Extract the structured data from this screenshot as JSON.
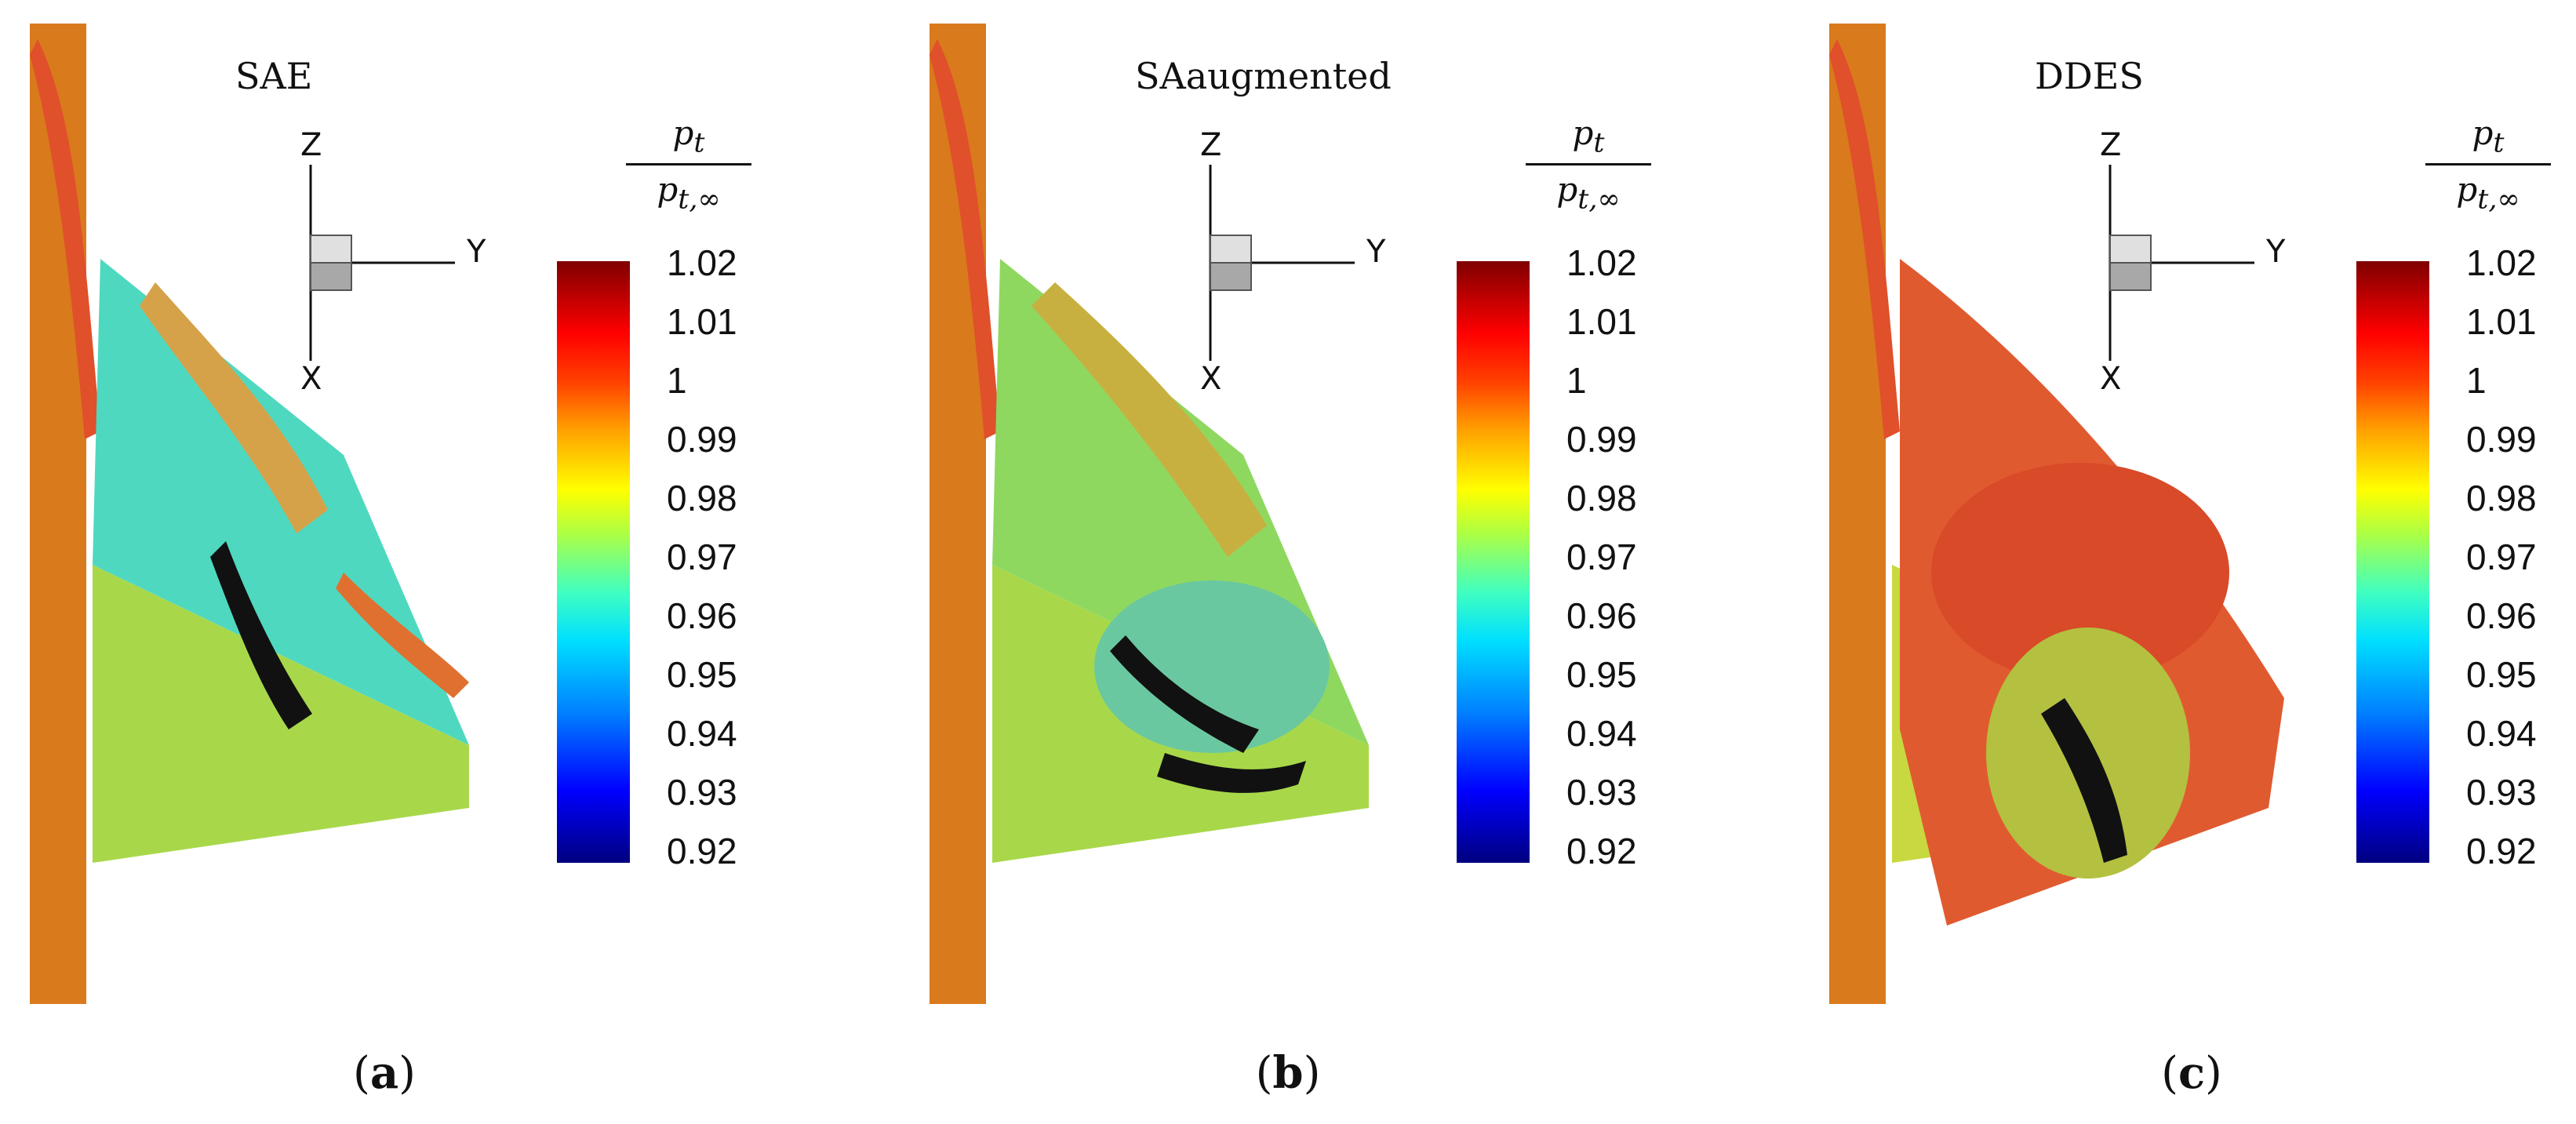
{
  "colormap": {
    "variable_numerator": "p",
    "variable_numerator_sub": "t",
    "variable_denominator": "p",
    "variable_denominator_sub": "t,∞",
    "ticks": [
      "1.02",
      "1.01",
      "1",
      "0.99",
      "0.98",
      "0.97",
      "0.96",
      "0.95",
      "0.94",
      "0.93",
      "0.92"
    ],
    "range": [
      0.92,
      1.02
    ],
    "colors": [
      "#00007f",
      "#0000ff",
      "#00e0ff",
      "#ffff00",
      "#ff0000",
      "#7f0000"
    ]
  },
  "axes": {
    "z": "Z",
    "y": "Y",
    "x": "X"
  },
  "panels": [
    {
      "title": "SAE",
      "label": "(a)",
      "label_letter": "a"
    },
    {
      "title": "SAaugmented",
      "label": "(b)",
      "label_letter": "b"
    },
    {
      "title": "DDES",
      "label": "(c)",
      "label_letter": "c"
    }
  ]
}
